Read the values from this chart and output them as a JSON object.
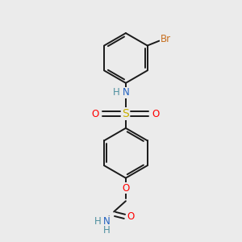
{
  "bg_color": "#ebebeb",
  "bond_color": "#1a1a1a",
  "colors": {
    "N": "#2060C0",
    "O": "#FF0000",
    "S": "#C8B000",
    "Br": "#C87020",
    "H": "#5090A0"
  },
  "bond_width": 1.4,
  "fig_size": [
    3.0,
    3.0
  ],
  "dpi": 100
}
